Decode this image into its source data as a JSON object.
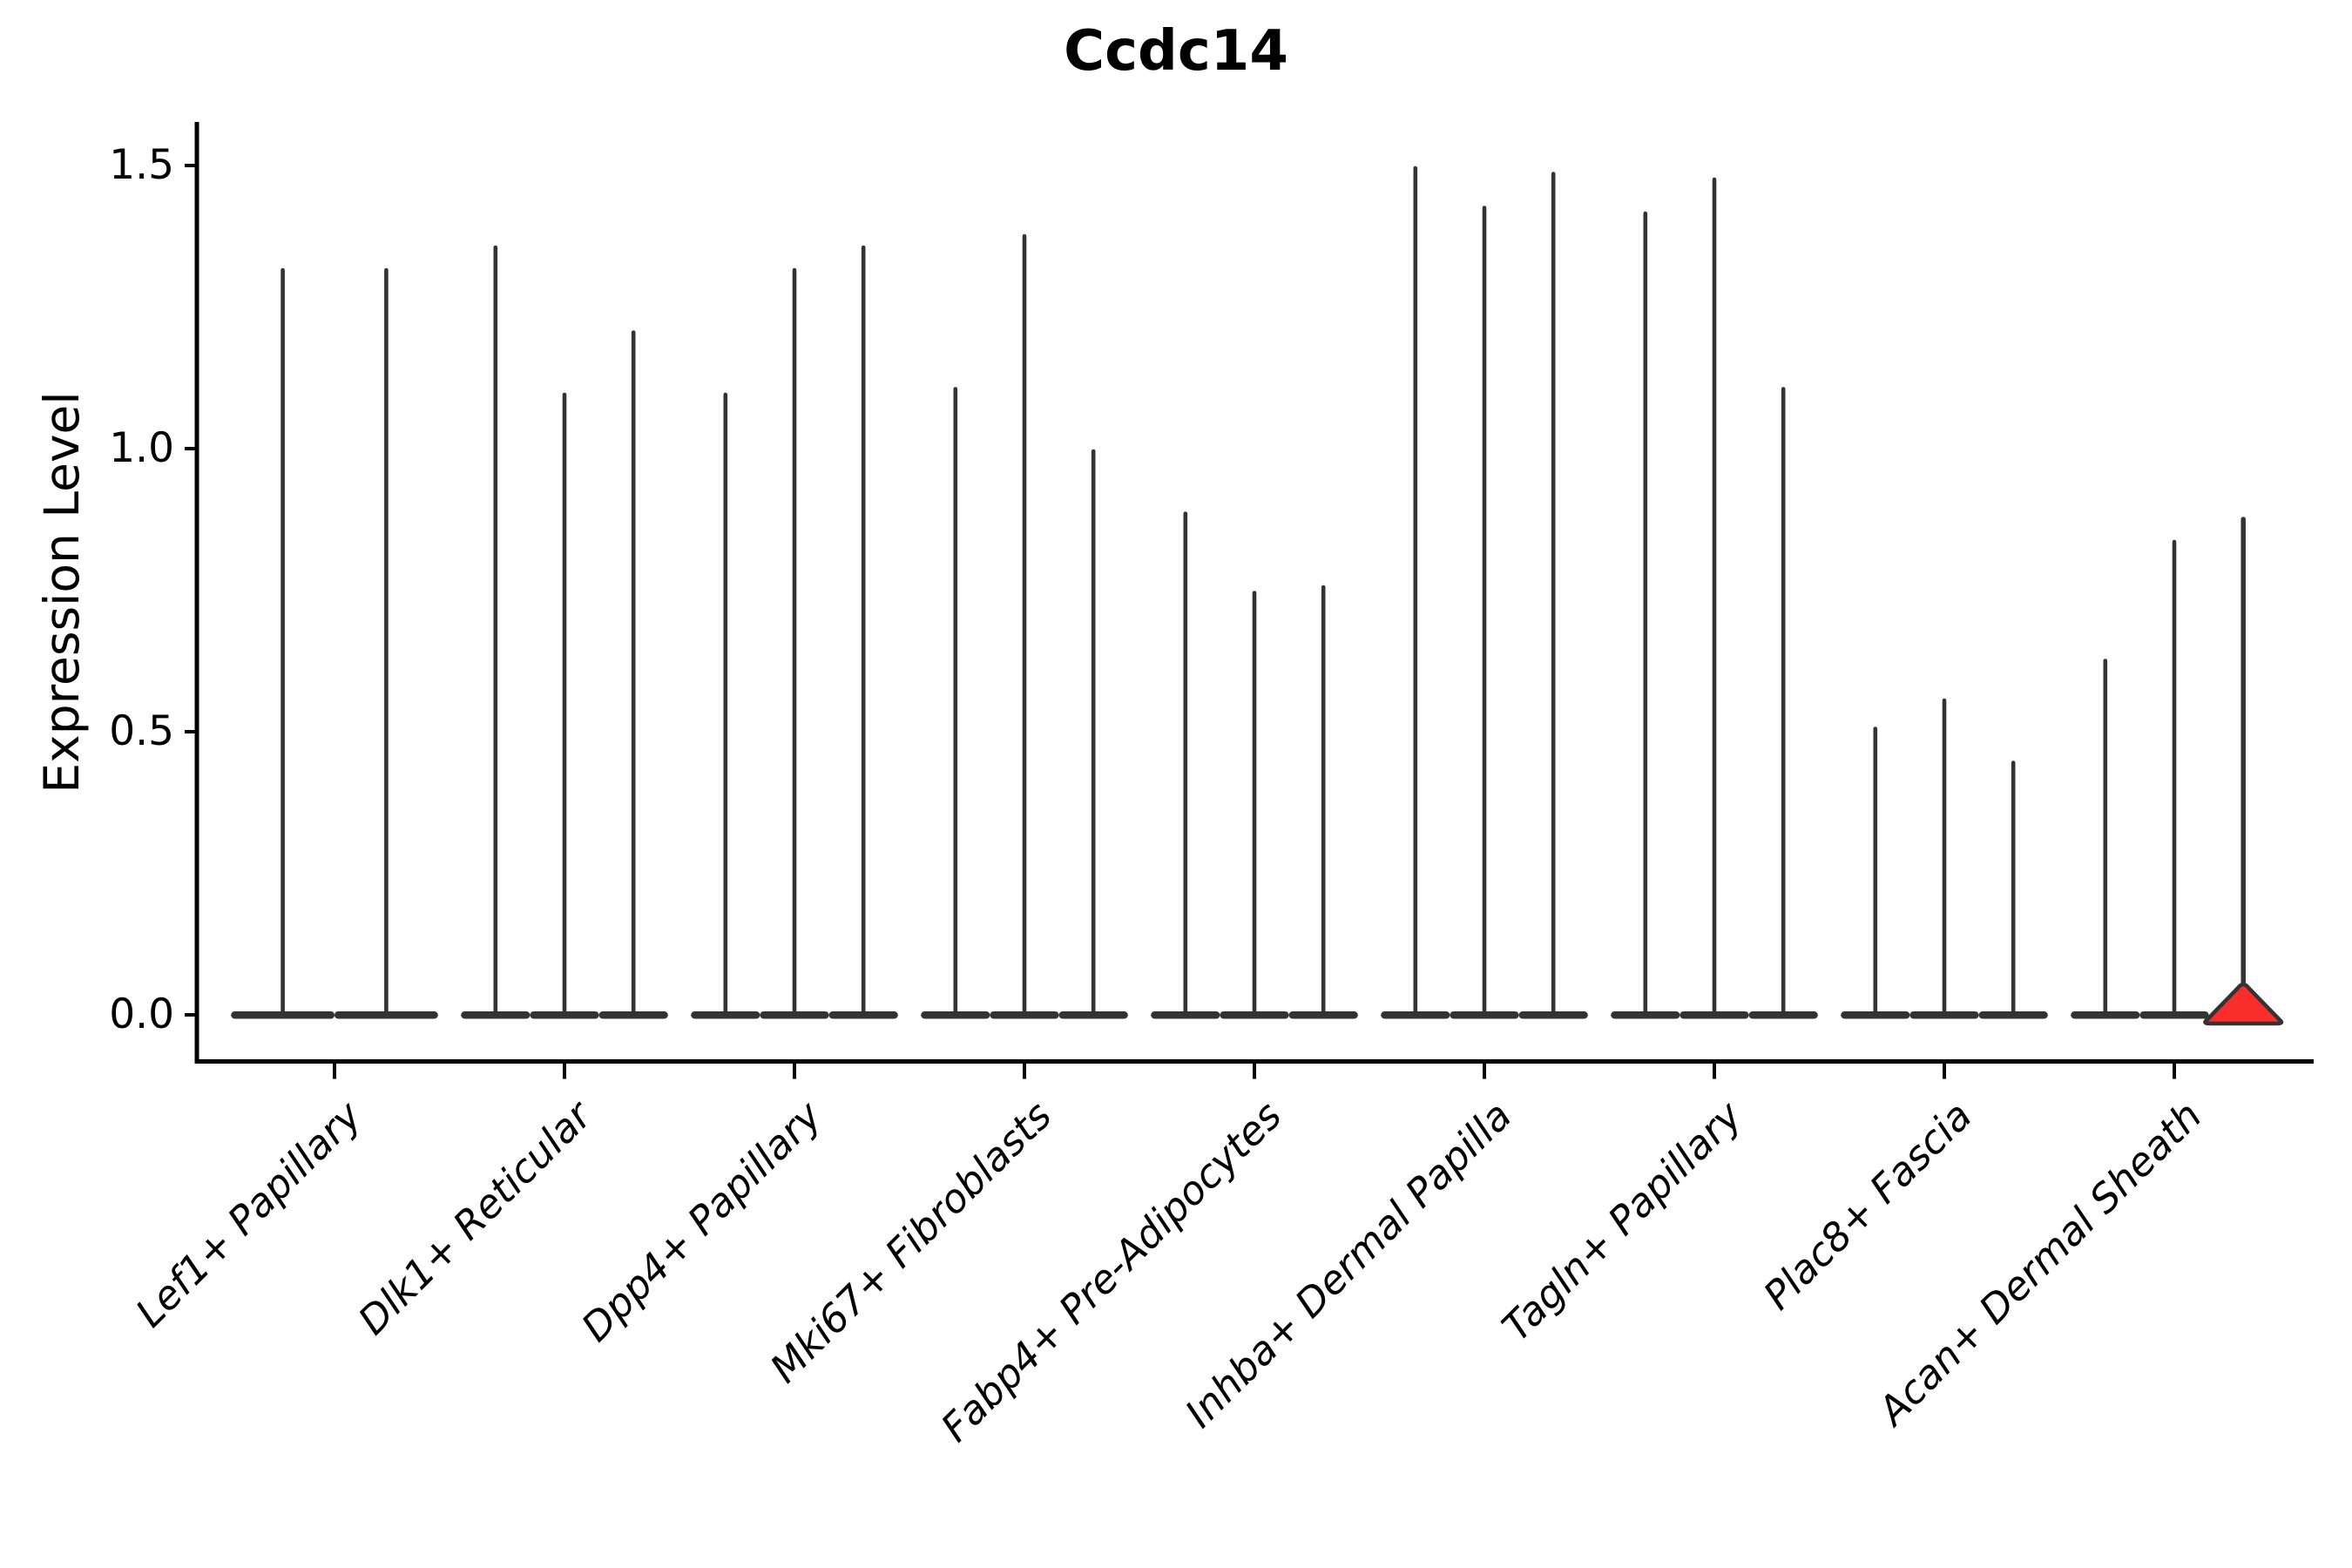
{
  "figure": {
    "title": "Ccdc14",
    "background": "#ffffff"
  },
  "y_axis": {
    "label": "Expression Level",
    "tick_labels": [
      "0.0",
      "0.5",
      "1.0",
      "1.5"
    ]
  },
  "x_axis": {
    "tick_labels": [
      "Lef1+ Papillary",
      "Dlk1+ Reticular",
      "Dpp4+ Papillary",
      "Mki67+ Fibroblasts",
      "Fabp4+ Pre-Adipocytes",
      "Inhba+ Dermal Papilla",
      "Tagln+ Papillary",
      "Plac8+ Fascia",
      "Acan+ Dermal Sheath"
    ]
  },
  "chart_data": {
    "type": "violin",
    "title": "Ccdc14",
    "xlabel": "",
    "ylabel": "Expression Level",
    "ylim": [
      -0.08,
      1.58
    ],
    "yticks": [
      0.0,
      0.5,
      1.0,
      1.5
    ],
    "grid": false,
    "legend": "none",
    "violin_color": "#333333",
    "highlight_color": "#fa2d2d",
    "note": "Violin plot of Ccdc14 expression; most cells at 0 so violins appear as flat bases with thin tails reaching the max expression. Last violin of Acan+ Dermal Sheath is red-filled with a visible density bulge near 0.",
    "categories": [
      "Lef1+ Papillary",
      "Dlk1+ Reticular",
      "Dpp4+ Papillary",
      "Mki67+ Fibroblasts",
      "Fabp4+ Pre-Adipocytes",
      "Inhba+ Dermal Papilla",
      "Tagln+ Papillary",
      "Plac8+ Fascia",
      "Acan+ Dermal Sheath"
    ],
    "groups": [
      {
        "category": "Lef1+ Papillary",
        "violins": [
          {
            "max": 1.32
          },
          {
            "max": 1.32
          }
        ]
      },
      {
        "category": "Dlk1+ Reticular",
        "violins": [
          {
            "max": 1.36
          },
          {
            "max": 1.1
          },
          {
            "max": 1.21
          }
        ]
      },
      {
        "category": "Dpp4+ Papillary",
        "violins": [
          {
            "max": 1.1
          },
          {
            "max": 1.32
          },
          {
            "max": 1.36
          }
        ]
      },
      {
        "category": "Mki67+ Fibroblasts",
        "violins": [
          {
            "max": 1.11
          },
          {
            "max": 1.38
          },
          {
            "max": 1.0
          }
        ]
      },
      {
        "category": "Fabp4+ Pre-Adipocytes",
        "violins": [
          {
            "max": 0.89
          },
          {
            "max": 0.75
          },
          {
            "max": 0.76
          }
        ]
      },
      {
        "category": "Inhba+ Dermal Papilla",
        "violins": [
          {
            "max": 1.5
          },
          {
            "max": 1.43
          },
          {
            "max": 1.49
          }
        ]
      },
      {
        "category": "Tagln+ Papillary",
        "violins": [
          {
            "max": 1.42
          },
          {
            "max": 1.48
          },
          {
            "max": 1.11
          }
        ]
      },
      {
        "category": "Plac8+ Fascia",
        "violins": [
          {
            "max": 0.51
          },
          {
            "max": 0.56
          },
          {
            "max": 0.45
          }
        ]
      },
      {
        "category": "Acan+ Dermal Sheath",
        "violins": [
          {
            "max": 0.63
          },
          {
            "max": 0.84
          },
          {
            "max": 0.88,
            "highlight": true
          }
        ]
      }
    ]
  }
}
